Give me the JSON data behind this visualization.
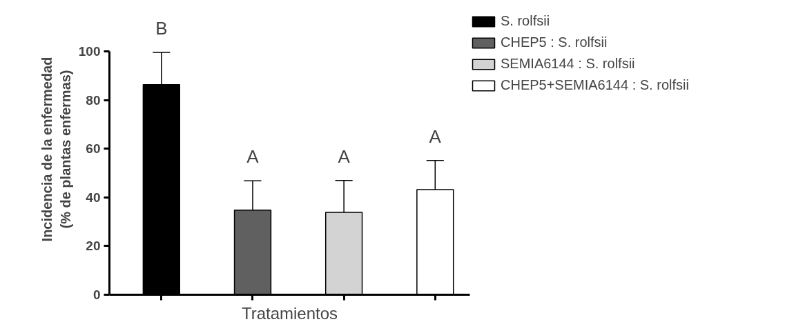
{
  "chart_data": {
    "type": "bar",
    "xlabel": "Tratamientos",
    "ylabel": "Incidencia de la enfermedad\n(% de plantas enfermas)",
    "categories": [
      null,
      null,
      null,
      null
    ],
    "series": [
      {
        "name": "S. rolfsii",
        "color": "#000000",
        "values": [
          86.4,
          null,
          null,
          null
        ],
        "errors": [
          [
            86.4,
            99.6
          ],
          null,
          null,
          null
        ]
      },
      {
        "name": "CHEP5 : S. rolfsii",
        "color": "#606060",
        "values": [
          null,
          34.8,
          null,
          null
        ],
        "errors": [
          null,
          [
            34.8,
            46.8
          ],
          null,
          null
        ]
      },
      {
        "name": "SEMIA6144 : S. rolfsii",
        "color": "#d3d3d3",
        "values": [
          null,
          null,
          33.9,
          null
        ],
        "errors": [
          null,
          null,
          [
            33.9,
            47.0
          ],
          null
        ]
      },
      {
        "name": "CHEP5+SEMIA6144 : S. rolfsii",
        "color": "#ffffff",
        "values": [
          null,
          null,
          null,
          43.2
        ],
        "errors": [
          null,
          null,
          null,
          [
            43.2,
            55.2
          ]
        ]
      }
    ],
    "annotations": [
      "B",
      "A",
      "A",
      "A"
    ],
    "ylim": [
      0,
      100
    ],
    "yticks": [
      0,
      20,
      40,
      60,
      80,
      100
    ],
    "tick_labels": "y",
    "grid": false,
    "legend": "top right"
  }
}
